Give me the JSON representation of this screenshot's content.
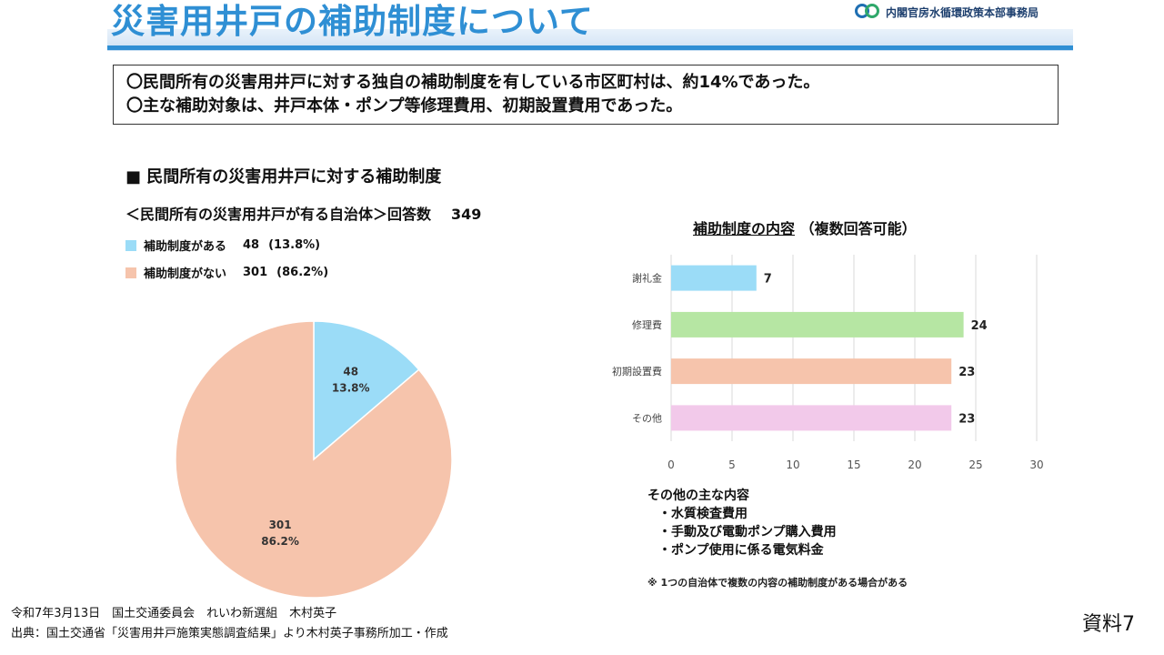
{
  "header": {
    "title": "災害用井戸の補助制度について",
    "agency": "内閣官房水循環政策本部事務局"
  },
  "summary": [
    "〇民間所有の災害用井戸に対する独自の補助制度を有している市区町村は、約14%であった。",
    "〇主な補助対象は、井戸本体・ポンプ等修理費用、初期設置費用であった。"
  ],
  "section": {
    "heading": "■ 民間所有の災害用井戸に対する補助制度",
    "subheading": "＜民間所有の災害用井戸が有る自治体＞回答数",
    "respondents": "349"
  },
  "legend": [
    {
      "label": "補助制度がある",
      "value": "48",
      "pct": "(13.8%)",
      "color": "#9bdcf7"
    },
    {
      "label": "補助制度がない",
      "value": "301",
      "pct": "(86.2%)",
      "color": "#f6c4ac"
    }
  ],
  "others": {
    "heading": "その他の主な内容",
    "items": [
      "・水質検査費用",
      "・手動及び電動ポンプ購入費用",
      "・ポンプ使用に係る電気料金"
    ],
    "note": "※ 1つの自治体で複数の内容の補助制度がある場合がある"
  },
  "footer": {
    "line1": "令和7年3月13日　国土交通委員会　れいわ新選組　木村英子",
    "line2": "出典：国土交通省「災害用井戸施策実態調査結果」より木村英子事務所加工・作成",
    "doc_label": "資料7"
  },
  "chart_data": [
    {
      "type": "pie",
      "slices": [
        {
          "value": 48,
          "pct_label": "13.8%",
          "color": "#9bdcf7"
        },
        {
          "value": 301,
          "pct_label": "86.2%",
          "color": "#f6c4ac"
        }
      ]
    },
    {
      "type": "bar",
      "orientation": "horizontal",
      "title": "補助制度の内容",
      "title_note": "（複数回答可能）",
      "categories": [
        "謝礼金",
        "修理費",
        "初期設置費",
        "その他"
      ],
      "values": [
        7,
        24,
        23,
        23
      ],
      "colors": [
        "#9bdcf7",
        "#b6e6a3",
        "#f6c4ac",
        "#f2c9ea"
      ],
      "xlim": [
        0,
        30
      ],
      "xticks": [
        0,
        5,
        10,
        15,
        20,
        25,
        30
      ],
      "grid": true
    }
  ]
}
